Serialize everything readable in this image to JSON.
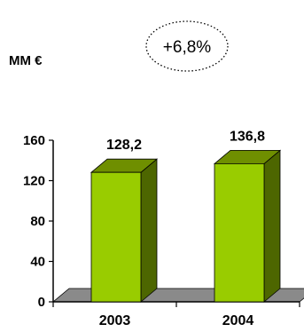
{
  "unit_label": "MM €",
  "growth_label": "+6,8%",
  "chart_data": {
    "type": "bar",
    "categories": [
      "2003",
      "2004"
    ],
    "values": [
      128.2,
      136.8
    ],
    "data_labels": [
      "128,2",
      "136,8"
    ],
    "ylim": [
      0,
      160
    ],
    "yticks": [
      0,
      40,
      80,
      120,
      160
    ],
    "ytick_labels": [
      "0",
      "40",
      "80",
      "120",
      "160"
    ],
    "grid": false,
    "style": "3d",
    "colors": {
      "bar_front": "#99cc00",
      "bar_side": "#4d6600",
      "bar_top": "#6f8f00",
      "floor": "#8a8a8a"
    }
  }
}
